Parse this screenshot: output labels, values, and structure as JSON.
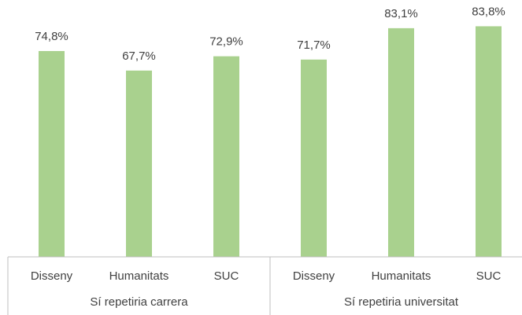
{
  "chart_data": {
    "type": "bar",
    "color": "#a9d18e",
    "ylim": [
      0,
      90
    ],
    "groups": [
      {
        "name": "Sí repetiria carrera",
        "categories": [
          "Disseny",
          "Humanitats",
          "SUC"
        ],
        "values": [
          74.8,
          67.7,
          72.9
        ],
        "value_labels": [
          "74,8%",
          "67,7%",
          "72,9%"
        ]
      },
      {
        "name": "Sí repetiria universitat",
        "categories": [
          "Disseny",
          "Humanitats",
          "SUC"
        ],
        "values": [
          71.7,
          83.1,
          83.8
        ],
        "value_labels": [
          "71,7%",
          "83,1%",
          "83,8%"
        ]
      }
    ]
  }
}
